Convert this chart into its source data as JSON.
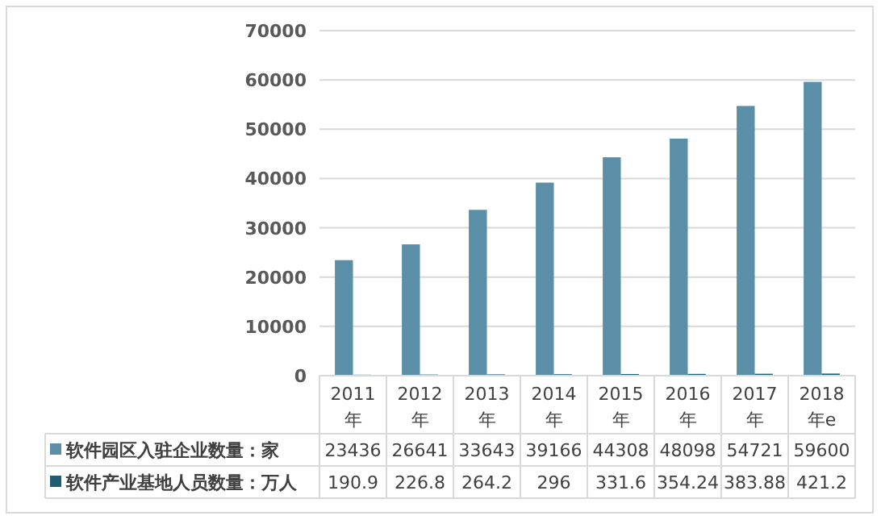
{
  "chart_data": {
    "type": "bar",
    "categories": [
      "2011\n年",
      "2012\n年",
      "2013\n年",
      "2014\n年",
      "2015\n年",
      "2016\n年",
      "2017\n年",
      "2018\n年e"
    ],
    "series": [
      {
        "name": "软件园区入驻企业数量：家",
        "color": "#5b8fa8",
        "values": [
          23436,
          26641,
          33643,
          39166,
          44308,
          48098,
          54721,
          59600
        ]
      },
      {
        "name": "软件产业基地人员数量：万人",
        "color": "#1f5c73",
        "values": [
          190.9,
          226.8,
          264.2,
          296,
          331.6,
          354.24,
          383.88,
          421.2
        ]
      }
    ],
    "ylim": [
      0,
      70000
    ],
    "yticks": [
      0,
      10000,
      20000,
      30000,
      40000,
      50000,
      60000,
      70000
    ],
    "grid": "y",
    "legend": "bottom",
    "data_labels": true
  }
}
